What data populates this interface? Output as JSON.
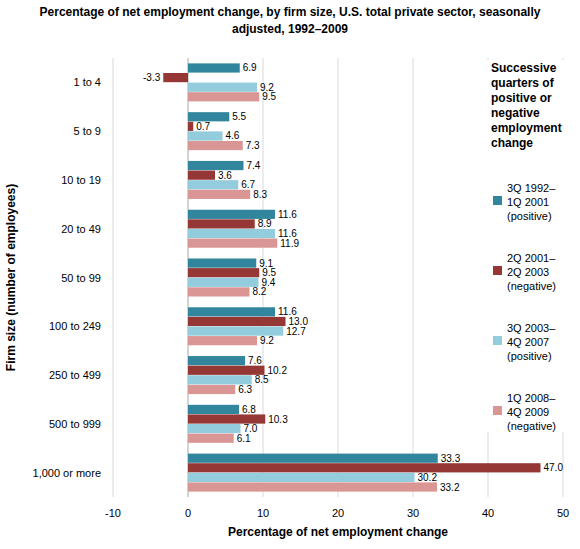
{
  "chart_data": {
    "type": "bar",
    "orientation": "horizontal",
    "title": "Percentage of net employment change, by firm size, U.S. total private sector, seasonally adjusted, 1992–2009",
    "x_label": "Percentage of net employment change",
    "y_label": "Firm size (number of employees)",
    "legend_title": "Successive quarters of positive or negative employment change",
    "legend": "right",
    "grid": true,
    "data_labels": true,
    "categories": [
      "1 to 4",
      "5 to 9",
      "10 to 19",
      "20 to 49",
      "50 to 99",
      "100 to 249",
      "250 to 499",
      "500 to 999",
      "1,000 or more"
    ],
    "xlim": [
      -10,
      50
    ],
    "xticks": [
      -10,
      0,
      10,
      20,
      30,
      40,
      50
    ],
    "series": [
      {
        "name": "3Q 1992–1Q 2001 (positive)",
        "color": "#31859c",
        "values": [
          6.9,
          5.5,
          7.4,
          11.6,
          9.1,
          11.6,
          7.6,
          6.8,
          33.3
        ],
        "value_labels": [
          "6.9",
          "5.5",
          "7.4",
          "11.6",
          "9.1",
          "11.6",
          "7.6",
          "6.8",
          "33.3"
        ]
      },
      {
        "name": "2Q 2001–2Q 2003 (negative)",
        "color": "#953735",
        "values": [
          -3.3,
          0.7,
          3.6,
          8.9,
          9.5,
          13.0,
          10.2,
          10.3,
          47.0
        ],
        "value_labels": [
          "-3.3",
          "0.7",
          "3.6",
          "8.9",
          "9.5",
          "13.0",
          "10.2",
          "10.3",
          "47.0"
        ]
      },
      {
        "name": "3Q 2003–4Q 2007 (positive)",
        "color": "#93cddd",
        "values": [
          9.2,
          4.6,
          6.7,
          11.6,
          9.4,
          12.7,
          8.5,
          7.0,
          30.2
        ],
        "value_labels": [
          "9.2",
          "4.6",
          "6.7",
          "11.6",
          "9.4",
          "12.7",
          "8.5",
          "7.0",
          "30.2"
        ]
      },
      {
        "name": "1Q 2008–4Q 2009 (negative)",
        "color": "#d99694",
        "values": [
          9.5,
          7.3,
          8.3,
          11.9,
          8.2,
          9.2,
          6.3,
          6.1,
          33.2
        ],
        "value_labels": [
          "9.5",
          "7.3",
          "8.3",
          "11.9",
          "8.2",
          "9.2",
          "6.3",
          "6.1",
          "33.2"
        ]
      }
    ]
  }
}
